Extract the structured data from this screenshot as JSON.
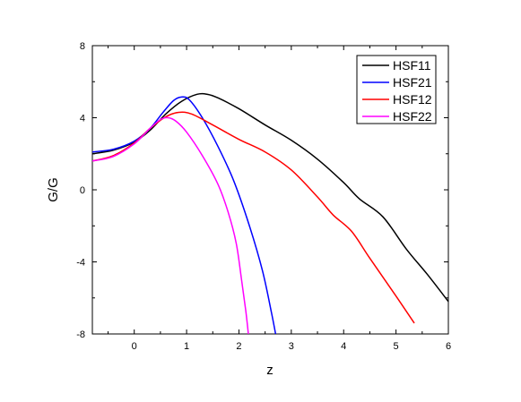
{
  "chart_data": {
    "type": "line",
    "title": "",
    "xlabel": "z",
    "ylabel": "G/G",
    "xlim": [
      -0.8,
      6
    ],
    "ylim": [
      -8,
      8
    ],
    "x_ticks": [
      0,
      1,
      2,
      3,
      4,
      5,
      6
    ],
    "y_ticks": [
      -8,
      -4,
      0,
      4,
      8
    ],
    "grid": false,
    "legend_position": "top-right",
    "series": [
      {
        "name": "HSF11",
        "color": "#000000",
        "points": [
          [
            -0.8,
            2.0
          ],
          [
            -0.4,
            2.2
          ],
          [
            0.0,
            2.65
          ],
          [
            0.3,
            3.3
          ],
          [
            0.6,
            4.2
          ],
          [
            0.9,
            4.9
          ],
          [
            1.2,
            5.3
          ],
          [
            1.4,
            5.3
          ],
          [
            1.6,
            5.1
          ],
          [
            2.0,
            4.5
          ],
          [
            2.5,
            3.6
          ],
          [
            3.0,
            2.75
          ],
          [
            3.5,
            1.7
          ],
          [
            4.0,
            0.4
          ],
          [
            4.3,
            -0.5
          ],
          [
            4.75,
            -1.5
          ],
          [
            5.2,
            -3.3
          ],
          [
            5.6,
            -4.7
          ],
          [
            6.0,
            -6.2
          ]
        ]
      },
      {
        "name": "HSF21",
        "color": "#0000ff",
        "points": [
          [
            -0.8,
            2.1
          ],
          [
            -0.4,
            2.25
          ],
          [
            0.0,
            2.7
          ],
          [
            0.3,
            3.4
          ],
          [
            0.55,
            4.3
          ],
          [
            0.75,
            4.95
          ],
          [
            0.9,
            5.15
          ],
          [
            1.05,
            5.0
          ],
          [
            1.3,
            4.0
          ],
          [
            1.6,
            2.4
          ],
          [
            1.9,
            0.5
          ],
          [
            2.2,
            -2.0
          ],
          [
            2.45,
            -4.5
          ],
          [
            2.62,
            -6.8
          ],
          [
            2.7,
            -8.0
          ]
        ]
      },
      {
        "name": "HSF12",
        "color": "#ff0000",
        "points": [
          [
            -0.8,
            1.6
          ],
          [
            -0.4,
            1.9
          ],
          [
            0.0,
            2.6
          ],
          [
            0.3,
            3.4
          ],
          [
            0.6,
            4.05
          ],
          [
            0.85,
            4.3
          ],
          [
            1.1,
            4.2
          ],
          [
            1.5,
            3.6
          ],
          [
            2.0,
            2.8
          ],
          [
            2.5,
            2.1
          ],
          [
            3.0,
            1.1
          ],
          [
            3.5,
            -0.4
          ],
          [
            3.8,
            -1.4
          ],
          [
            4.15,
            -2.3
          ],
          [
            4.5,
            -3.8
          ],
          [
            5.0,
            -5.9
          ],
          [
            5.35,
            -7.4
          ]
        ]
      },
      {
        "name": "HSF22",
        "color": "#ff00ff",
        "points": [
          [
            -0.8,
            1.6
          ],
          [
            -0.4,
            1.85
          ],
          [
            0.0,
            2.55
          ],
          [
            0.3,
            3.4
          ],
          [
            0.5,
            3.9
          ],
          [
            0.65,
            4.0
          ],
          [
            0.8,
            3.8
          ],
          [
            1.0,
            3.2
          ],
          [
            1.3,
            1.9
          ],
          [
            1.6,
            0.3
          ],
          [
            1.8,
            -1.3
          ],
          [
            1.95,
            -3.0
          ],
          [
            2.05,
            -5.0
          ],
          [
            2.13,
            -6.7
          ],
          [
            2.18,
            -8.0
          ]
        ]
      }
    ]
  }
}
